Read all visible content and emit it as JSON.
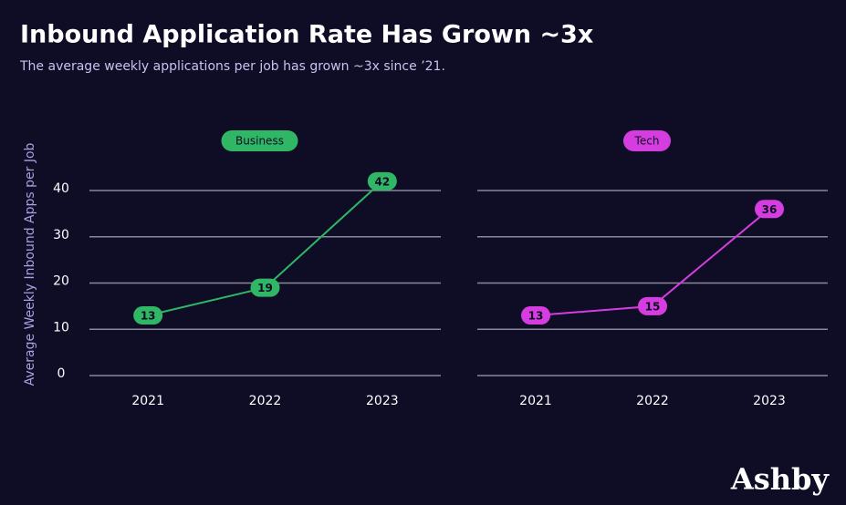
{
  "title": "Inbound Application Rate Has Grown ~3x",
  "subtitle": "The average weekly applications per job has grown ~3x since ’21.",
  "logo": "Ashby",
  "chart_data": [
    {
      "type": "line",
      "ylabel": "Average Weekly Inbound Apps per Job",
      "categories": [
        "2021",
        "2022",
        "2023"
      ],
      "series": [
        {
          "name": "Business",
          "color": "#2fb765",
          "values": [
            13,
            19,
            42
          ]
        }
      ],
      "ylim": [
        0,
        40
      ],
      "yticks": [
        0,
        10,
        20,
        30,
        40
      ],
      "ytick_labels": true,
      "grid": true
    },
    {
      "type": "line",
      "categories": [
        "2021",
        "2022",
        "2023"
      ],
      "series": [
        {
          "name": "Tech",
          "color": "#d63de0",
          "values": [
            13,
            15,
            36
          ]
        }
      ],
      "ylim": [
        0,
        40
      ],
      "yticks": [
        0,
        10,
        20,
        30,
        40
      ],
      "ytick_labels": false,
      "grid": true
    }
  ]
}
